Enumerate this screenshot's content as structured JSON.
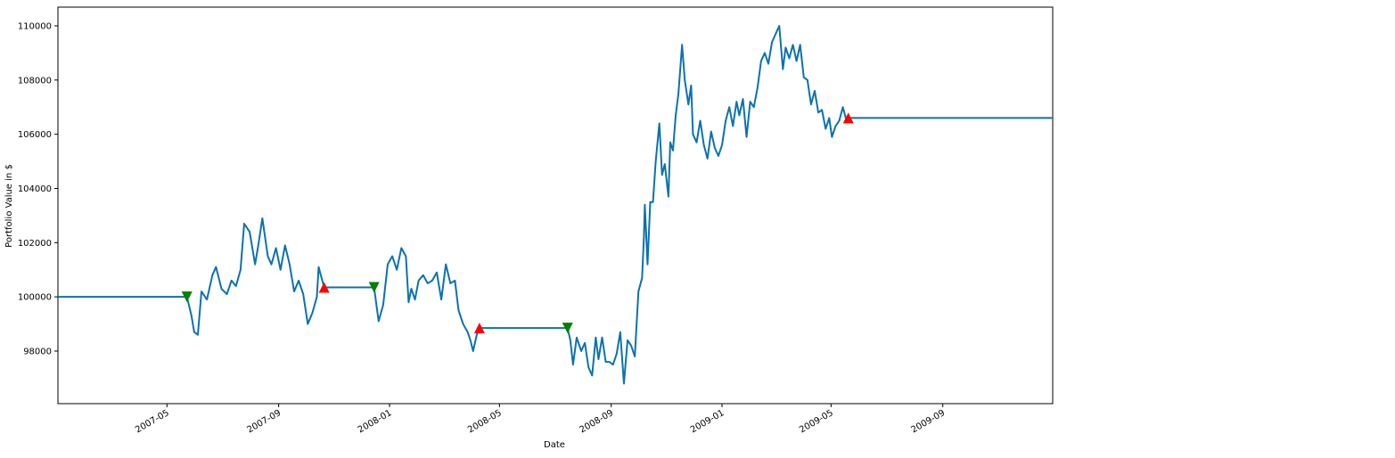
{
  "chart_data": {
    "type": "line",
    "xlabel": "Date",
    "ylabel": "Portfolio Value in $",
    "color": "#0b72b0",
    "x": [
      "2007-01-01",
      "2007-05-23",
      "2007-05-28",
      "2007-05-31",
      "2007-06-04",
      "2007-06-08",
      "2007-06-14",
      "2007-06-20",
      "2007-06-24",
      "2007-06-30",
      "2007-07-06",
      "2007-07-11",
      "2007-07-16",
      "2007-07-21",
      "2007-07-25",
      "2007-07-31",
      "2007-08-06",
      "2007-08-10",
      "2007-08-14",
      "2007-08-20",
      "2007-08-24",
      "2007-08-29",
      "2007-09-03",
      "2007-09-08",
      "2007-09-13",
      "2007-09-18",
      "2007-09-23",
      "2007-09-28",
      "2007-10-03",
      "2007-10-08",
      "2007-10-13",
      "2007-10-15",
      "2007-10-19",
      "2007-10-21",
      "2007-12-15",
      "2007-12-20",
      "2007-12-25",
      "2007-12-30",
      "2008-01-04",
      "2008-01-09",
      "2008-01-14",
      "2008-01-19",
      "2008-01-22",
      "2008-01-25",
      "2008-01-29",
      "2008-02-02",
      "2008-02-07",
      "2008-02-12",
      "2008-02-17",
      "2008-02-22",
      "2008-02-27",
      "2008-03-03",
      "2008-03-08",
      "2008-03-13",
      "2008-03-17",
      "2008-03-22",
      "2008-03-27",
      "2008-03-30",
      "2008-04-02",
      "2008-04-06",
      "2008-04-09",
      "2008-07-15",
      "2008-07-18",
      "2008-07-21",
      "2008-07-25",
      "2008-07-30",
      "2008-08-03",
      "2008-08-07",
      "2008-08-11",
      "2008-08-15",
      "2008-08-18",
      "2008-08-22",
      "2008-08-26",
      "2008-08-30",
      "2008-09-03",
      "2008-09-07",
      "2008-09-11",
      "2008-09-15",
      "2008-09-19",
      "2008-09-23",
      "2008-09-27",
      "2008-10-01",
      "2008-10-05",
      "2008-10-07",
      "2008-10-08",
      "2008-10-11",
      "2008-10-14",
      "2008-10-17",
      "2008-10-20",
      "2008-10-24",
      "2008-10-27",
      "2008-10-30",
      "2008-11-03",
      "2008-11-05",
      "2008-11-08",
      "2008-11-11",
      "2008-11-14",
      "2008-11-18",
      "2008-11-21",
      "2008-11-25",
      "2008-11-28",
      "2008-11-30",
      "2008-12-04",
      "2008-12-08",
      "2008-12-12",
      "2008-12-16",
      "2008-12-20",
      "2008-12-24",
      "2008-12-28",
      "2009-01-01",
      "2009-01-05",
      "2009-01-09",
      "2009-01-13",
      "2009-01-17",
      "2009-01-20",
      "2009-01-24",
      "2009-01-28",
      "2009-02-01",
      "2009-02-05",
      "2009-02-09",
      "2009-02-13",
      "2009-02-17",
      "2009-02-21",
      "2009-02-25",
      "2009-03-01",
      "2009-03-05",
      "2009-03-09",
      "2009-03-12",
      "2009-03-16",
      "2009-03-20",
      "2009-03-24",
      "2009-03-28",
      "2009-04-01",
      "2009-04-05",
      "2009-04-09",
      "2009-04-13",
      "2009-04-17",
      "2009-04-21",
      "2009-04-25",
      "2009-04-29",
      "2009-05-02",
      "2009-05-06",
      "2009-05-10",
      "2009-05-14",
      "2009-05-18",
      "2009-05-20",
      "2009-12-31"
    ],
    "values": [
      100000,
      100000,
      99300,
      98700,
      98600,
      100200,
      99900,
      100800,
      101100,
      100300,
      100100,
      100600,
      100400,
      101000,
      102700,
      102400,
      101200,
      102000,
      102900,
      101500,
      101200,
      101800,
      101000,
      101900,
      101200,
      100200,
      100600,
      100100,
      99000,
      99400,
      100000,
      101100,
      100600,
      100350,
      100350,
      99100,
      99700,
      101200,
      101500,
      101000,
      101800,
      101500,
      99800,
      100300,
      99900,
      100600,
      100800,
      100500,
      100600,
      100900,
      99900,
      101200,
      100500,
      100600,
      99500,
      99000,
      98700,
      98400,
      98000,
      98600,
      98850,
      98850,
      98400,
      97500,
      98500,
      98000,
      98300,
      97400,
      97100,
      98500,
      97700,
      98500,
      97600,
      97600,
      97500,
      97900,
      98700,
      96800,
      98400,
      98200,
      97800,
      100200,
      100700,
      102200,
      103400,
      101200,
      103500,
      103500,
      105000,
      106400,
      104500,
      104900,
      103700,
      105700,
      105400,
      106700,
      107500,
      109300,
      108000,
      107100,
      107800,
      106000,
      105700,
      106500,
      105600,
      105100,
      106100,
      105500,
      105200,
      105600,
      106500,
      107000,
      106300,
      107200,
      106700,
      107300,
      105900,
      107200,
      107000,
      107700,
      108700,
      109000,
      108600,
      109400,
      109700,
      110000,
      108400,
      109200,
      108800,
      109300,
      108700,
      109300,
      108100,
      108000,
      107100,
      107600,
      106800,
      106900,
      106200,
      106600,
      105900,
      106300,
      106500,
      107000,
      106500,
      106600,
      106600
    ],
    "markers": [
      {
        "shape": "down",
        "color": "#007f00",
        "x": [
          "2007-05-23",
          "2007-12-15",
          "2008-07-15"
        ],
        "values": [
          100000,
          100350,
          98850
        ]
      },
      {
        "shape": "up",
        "color": "#ff0000",
        "x": [
          "2007-10-21",
          "2008-04-09",
          "2009-05-20"
        ],
        "values": [
          100350,
          98850,
          106600
        ]
      }
    ],
    "xlim": [
      "2007-01-01",
      "2009-12-31"
    ],
    "xticks": [
      "2007-05",
      "2007-09",
      "2008-01",
      "2008-05",
      "2008-09",
      "2009-01",
      "2009-05",
      "2009-09"
    ],
    "ylim": [
      96060,
      110690
    ],
    "yticks": [
      98000,
      100000,
      102000,
      104000,
      106000,
      108000,
      110000
    ]
  }
}
